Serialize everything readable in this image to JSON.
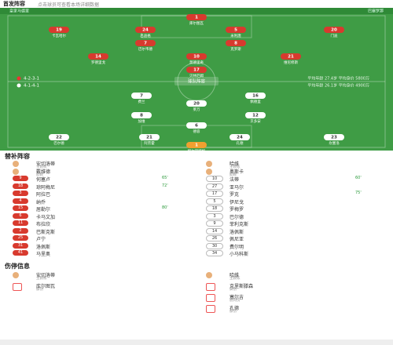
{
  "header": {
    "title": "首发阵容",
    "subtitle": "点击球员可查看本场详细数据"
  },
  "teams": [
    {
      "name": "皇家马德里",
      "formation": "4-2-3-1",
      "info": "平均年龄 27.4岁  平均身价 5800万"
    },
    {
      "name": "巴塞罗那",
      "formation": "4-1-4-1",
      "info": "平均年龄 26.1岁  平均身价 4900万"
    }
  ],
  "lineup_button": "球队阵容",
  "pitch_players": {
    "home": [
      {
        "number": "1",
        "name": "库尔图瓦"
      },
      {
        "number": "19",
        "name": "卡瓦哈尔"
      },
      {
        "number": "24",
        "name": "吕迪格"
      },
      {
        "number": "5",
        "name": "米利唐"
      },
      {
        "number": "20",
        "name": "门迪"
      },
      {
        "number": "7",
        "name": "巴尔韦德"
      },
      {
        "number": "8",
        "name": "克罗斯"
      },
      {
        "number": "14",
        "name": "罗德里戈"
      },
      {
        "number": "10",
        "name": "莫德里奇"
      },
      {
        "number": "21",
        "name": "维尼修斯"
      },
      {
        "number": "17",
        "name": "贝林厄姆"
      }
    ],
    "away": [
      {
        "number": "7",
        "name": "费兰"
      },
      {
        "number": "16",
        "name": "佩德里"
      },
      {
        "number": "20",
        "name": "莱万"
      },
      {
        "number": "8",
        "name": "加维"
      },
      {
        "number": "12",
        "name": "京多安"
      },
      {
        "number": "6",
        "name": "德容"
      },
      {
        "number": "22",
        "name": "巴尔德"
      },
      {
        "number": "21",
        "name": "阿劳霍"
      },
      {
        "number": "24",
        "name": "孔德"
      },
      {
        "number": "23",
        "name": "坎塞洛"
      },
      {
        "number": "1",
        "name": "特尔施特根"
      }
    ]
  },
  "substitutes_title": "替补阵容",
  "substitutes": {
    "home": {
      "staff": [
        {
          "role": "主教练",
          "name": "安切洛蒂"
        },
        {
          "role": "助教",
          "name": "戴维德"
        }
      ],
      "players": [
        {
          "number": "9",
          "name": "何塞卢",
          "event": "65'"
        },
        {
          "number": "18",
          "name": "琼阿梅尼",
          "event": "72'"
        },
        {
          "number": "3",
          "name": "阿拉巴",
          "event": ""
        },
        {
          "number": "4",
          "name": "纳乔",
          "event": ""
        },
        {
          "number": "15",
          "name": "居勒尔",
          "event": "80'"
        },
        {
          "number": "6",
          "name": "卡马文加",
          "event": ""
        },
        {
          "number": "11",
          "name": "布拉欣",
          "event": ""
        },
        {
          "number": "2",
          "name": "巴斯克斯",
          "event": ""
        },
        {
          "number": "25",
          "name": "卢宁",
          "event": ""
        },
        {
          "number": "31",
          "name": "洛佩斯",
          "event": ""
        },
        {
          "number": "41",
          "name": "马里奥",
          "event": ""
        }
      ]
    },
    "away": {
      "staff": [
        {
          "role": "主教练",
          "name": "哈维"
        },
        {
          "role": "助教",
          "name": "奥斯卡"
        }
      ],
      "players": [
        {
          "number": "10",
          "name": "法蒂",
          "event": "60'"
        },
        {
          "number": "27",
          "name": "亚马尔",
          "event": ""
        },
        {
          "number": "17",
          "name": "罗克",
          "event": "75'"
        },
        {
          "number": "5",
          "name": "伊尼戈",
          "event": ""
        },
        {
          "number": "18",
          "name": "罗梅罗",
          "event": ""
        },
        {
          "number": "3",
          "name": "巴尔德",
          "event": ""
        },
        {
          "number": "9",
          "name": "菲利克斯",
          "event": ""
        },
        {
          "number": "14",
          "name": "洛佩斯",
          "event": ""
        },
        {
          "number": "26",
          "name": "佩尼亚",
          "event": ""
        },
        {
          "number": "30",
          "name": "费尔明",
          "event": ""
        },
        {
          "number": "34",
          "name": "小马科斯",
          "event": ""
        }
      ]
    }
  },
  "injuries_title": "伤停信息",
  "injuries": {
    "home": {
      "staff_role": "主教练",
      "staff": "安切洛蒂",
      "players": [
        {
          "name": "库尔图瓦",
          "reason": "膝伤"
        }
      ]
    },
    "away": {
      "staff_role": "主教练",
      "staff": "哈维",
      "players": [
        {
          "name": "克里斯滕森",
          "reason": "脚伤"
        },
        {
          "name": "塞尔吉",
          "reason": "肌肉伤"
        },
        {
          "name": "孔德",
          "reason": "膝伤"
        }
      ]
    }
  }
}
